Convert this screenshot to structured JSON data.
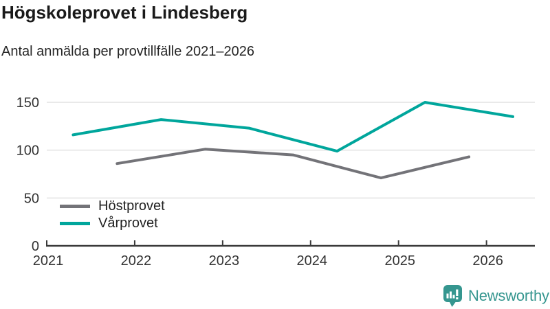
{
  "header": {
    "title": "Högskoleprovet i Lindesberg",
    "subtitle": "Antal anmälda per provtillfälle 2021–2026"
  },
  "footer": {
    "logo_text": "Newsworthy"
  },
  "colors": {
    "accent_teal": "#00a69c",
    "line_gray": "#737378",
    "grid": "#e2e2e2",
    "axis": "#3a3a3a",
    "tick_label": "#333333",
    "logo": "#35968f"
  },
  "chart_data": {
    "type": "line",
    "title": "Högskoleprovet i Lindesberg",
    "subtitle": "Antal anmälda per provtillfälle 2021–2026",
    "xlabel": "",
    "ylabel": "",
    "xlim": [
      2021,
      2026.55
    ],
    "ylim": [
      0,
      150
    ],
    "yticks": [
      0,
      50,
      100,
      150
    ],
    "xticks": [
      2021,
      2022,
      2023,
      2024,
      2025,
      2026
    ],
    "grid": "horizontal",
    "legend_position": "inside-lower-left",
    "series": [
      {
        "name": "Höstprovet",
        "color": "#737378",
        "x": [
          2021.8,
          2022.8,
          2023.8,
          2024.8,
          2025.8
        ],
        "values": [
          86,
          101,
          95,
          71,
          93
        ]
      },
      {
        "name": "Vårprovet",
        "color": "#00a69c",
        "x": [
          2021.3,
          2022.3,
          2023.3,
          2024.3,
          2025.3,
          2026.3
        ],
        "values": [
          116,
          132,
          123,
          99,
          150,
          135
        ]
      }
    ]
  }
}
